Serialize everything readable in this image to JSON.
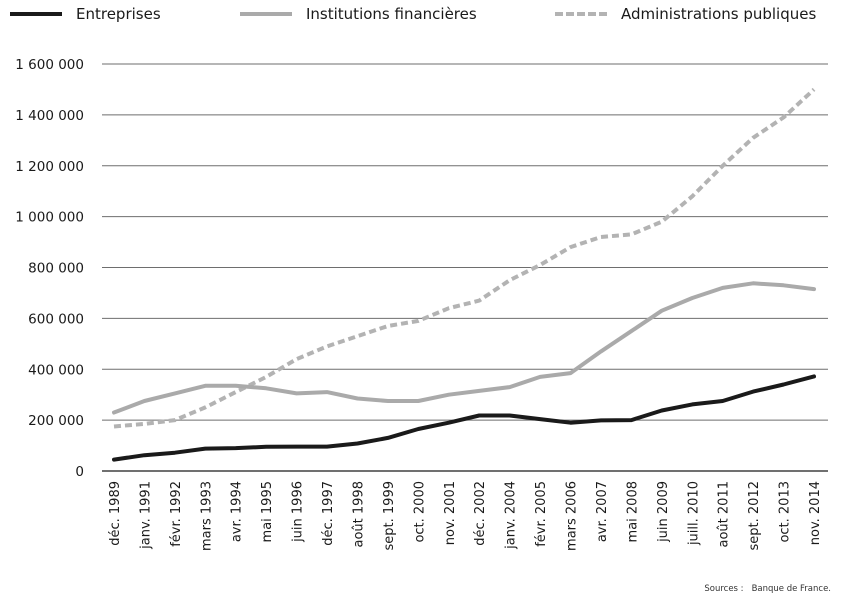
{
  "chart_data": {
    "type": "line",
    "title": "",
    "xlabel": "",
    "ylabel": "",
    "ylim": [
      0,
      1600000
    ],
    "yticks": [
      0,
      200000,
      400000,
      600000,
      800000,
      1000000,
      1200000,
      1400000,
      1600000
    ],
    "ytick_labels": [
      "0",
      "200 000",
      "400 000",
      "600 000",
      "800 000",
      "1 000 000",
      "1 200 000",
      "1 400 000",
      "1 600 000"
    ],
    "grid": "horizontal",
    "legend_position": "top",
    "x_tick_labels": [
      "déc. 1989",
      "janv. 1991",
      "févr. 1992",
      "mars 1993",
      "avr. 1994",
      "mai 1995",
      "juin 1996",
      "déc. 1997",
      "août 1998",
      "sept. 1999",
      "oct. 2000",
      "nov. 2001",
      "déc. 2002",
      "janv. 2004",
      "févr. 2005",
      "mars 2006",
      "avr. 2007",
      "mai 2008",
      "juin 2009",
      "juill. 2010",
      "août 2011",
      "sept. 2012",
      "oct. 2013",
      "nov. 2014"
    ],
    "series": [
      {
        "name": "Entreprises",
        "color": "#1a1a1a",
        "dash": "solid",
        "points": [
          [
            "déc. 1989",
            45000
          ],
          [
            "janv. 1991",
            62000
          ],
          [
            "févr. 1992",
            72000
          ],
          [
            "mars 1993",
            88000
          ],
          [
            "avr. 1994",
            90000
          ],
          [
            "mai 1995",
            95000
          ],
          [
            "juin 1996",
            96000
          ],
          [
            "déc. 1997",
            96000
          ],
          [
            "août 1998",
            108000
          ],
          [
            "sept. 1999",
            130000
          ],
          [
            "oct. 2000",
            165000
          ],
          [
            "nov. 2001",
            190000
          ],
          [
            "déc. 2002",
            218000
          ],
          [
            "janv. 2004",
            218000
          ],
          [
            "févr. 2005",
            204000
          ],
          [
            "mars 2006",
            190000
          ],
          [
            "avr. 2007",
            199000
          ],
          [
            "mai 2008",
            200000
          ],
          [
            "juin 2009",
            238000
          ],
          [
            "juill. 2010",
            262000
          ],
          [
            "août 2011",
            275000
          ],
          [
            "sept. 2012",
            312000
          ],
          [
            "oct. 2013",
            340000
          ],
          [
            "nov. 2014",
            372000
          ]
        ]
      },
      {
        "name": "Institutions financières",
        "color": "#aaaaaa",
        "dash": "solid",
        "points": [
          [
            "déc. 1989",
            230000
          ],
          [
            "janv. 1991",
            275000
          ],
          [
            "févr. 1992",
            305000
          ],
          [
            "mars 1993",
            335000
          ],
          [
            "avr. 1994",
            335000
          ],
          [
            "mai 1995",
            325000
          ],
          [
            "juin 1996",
            305000
          ],
          [
            "déc. 1997",
            310000
          ],
          [
            "août 1998",
            285000
          ],
          [
            "sept. 1999",
            275000
          ],
          [
            "oct. 2000",
            275000
          ],
          [
            "nov. 2001",
            300000
          ],
          [
            "déc. 2002",
            315000
          ],
          [
            "janv. 2004",
            330000
          ],
          [
            "févr. 2005",
            370000
          ],
          [
            "mars 2006",
            385000
          ],
          [
            "avr. 2007",
            470000
          ],
          [
            "mai 2008",
            550000
          ],
          [
            "juin 2009",
            630000
          ],
          [
            "juill. 2010",
            680000
          ],
          [
            "août 2011",
            720000
          ],
          [
            "sept. 2012",
            738000
          ],
          [
            "oct. 2013",
            730000
          ],
          [
            "nov. 2014",
            715000
          ]
        ]
      },
      {
        "name": "Administrations publiques",
        "color": "#b3b3b3",
        "dash": "dashed",
        "points": [
          [
            "déc. 1989",
            175000
          ],
          [
            "janv. 1991",
            185000
          ],
          [
            "févr. 1992",
            200000
          ],
          [
            "mars 1993",
            250000
          ],
          [
            "avr. 1994",
            310000
          ],
          [
            "mai 1995",
            370000
          ],
          [
            "juin 1996",
            440000
          ],
          [
            "déc. 1997",
            490000
          ],
          [
            "août 1998",
            530000
          ],
          [
            "sept. 1999",
            570000
          ],
          [
            "oct. 2000",
            590000
          ],
          [
            "nov. 2001",
            640000
          ],
          [
            "déc. 2002",
            670000
          ],
          [
            "janv. 2004",
            750000
          ],
          [
            "févr. 2005",
            810000
          ],
          [
            "mars 2006",
            880000
          ],
          [
            "avr. 2007",
            920000
          ],
          [
            "mai 2008",
            930000
          ],
          [
            "juin 2009",
            980000
          ],
          [
            "juill. 2010",
            1080000
          ],
          [
            "août 2011",
            1200000
          ],
          [
            "sept. 2012",
            1310000
          ],
          [
            "oct. 2013",
            1390000
          ],
          [
            "nov. 2014",
            1500000
          ]
        ]
      }
    ]
  },
  "source": {
    "label": "Sources :",
    "text": "Banque de France."
  }
}
